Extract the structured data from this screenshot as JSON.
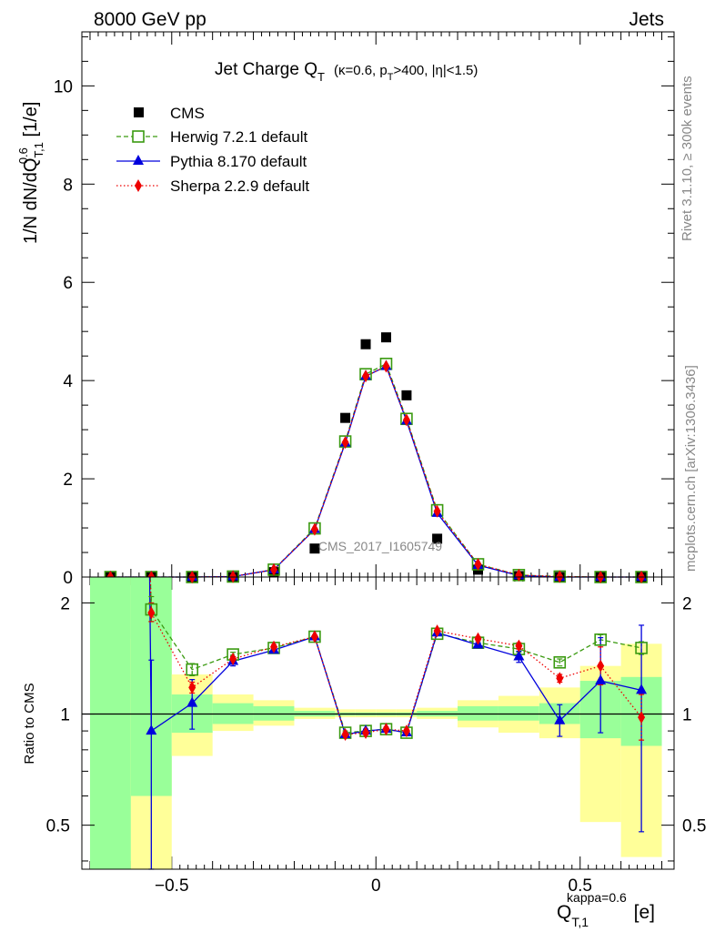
{
  "header": {
    "left": "8000 GeV pp",
    "right": "Jets"
  },
  "side_labels": {
    "rivet": "Rivet 3.1.10, ≥ 300k events",
    "mcplots": "mcplots.cern.ch [arXiv:1306.3436]"
  },
  "watermark": "CMS_2017_I1605749",
  "main_plot": {
    "title_main": "Jet Charge Q",
    "title_sub": "T",
    "title_cuts_a": "(κ=0.6, p",
    "title_cuts_b": "T",
    "title_cuts_c": ">400, |η|<1.5)",
    "ylabel_a": "1/N dN/dQ",
    "ylabel_sub": "T,1",
    "ylabel_sup": "0.6",
    "ylabel_b": " [1/e]",
    "y_ticks": [
      "0",
      "2",
      "4",
      "6",
      "8",
      "10"
    ]
  },
  "ratio_plot": {
    "ylabel": "Ratio to CMS",
    "y_ticks_left": [
      "0.5",
      "1",
      "2"
    ],
    "y_ticks_right": [
      "0.5",
      "1",
      "2"
    ],
    "x_ticks": [
      "−0.5",
      "0",
      "0.5"
    ],
    "xlabel_a": "Q",
    "xlabel_sub": "T,1",
    "xlabel_sup": "kappa=0.6",
    "xlabel_b": " [e]"
  },
  "legend": [
    {
      "label": "CMS",
      "color": "#000000",
      "marker": "square-filled"
    },
    {
      "label": "Herwig 7.2.1 default",
      "color": "#3a9a10",
      "marker": "square-open"
    },
    {
      "label": "Pythia 8.170 default",
      "color": "#0000dd",
      "marker": "triangle"
    },
    {
      "label": "Sherpa 2.2.9 default",
      "color": "#ee0000",
      "marker": "diamond"
    }
  ],
  "chart_data": [
    {
      "type": "scatter",
      "title": "Jet Charge Q_T (κ=0.6, p_T>400, |η|<1.5)",
      "xlabel": "Q_T,1^kappa=0.6 [e]",
      "ylabel": "1/N dN/dQ_T,1^0.6 [1/e]",
      "xlim": [
        -0.72,
        0.73
      ],
      "ylim": [
        0,
        11.1
      ],
      "x": [
        -0.65,
        -0.55,
        -0.45,
        -0.35,
        -0.25,
        -0.15,
        -0.075,
        -0.025,
        0.025,
        0.075,
        0.15,
        0.25,
        0.35,
        0.45,
        0.55,
        0.65
      ],
      "series": [
        {
          "name": "CMS",
          "values": [
            0.0,
            0.0,
            0.0,
            0.0,
            0.1,
            0.58,
            3.24,
            4.74,
            4.88,
            3.7,
            0.78,
            0.15,
            0.02,
            0.0,
            0.0,
            0.0
          ]
        },
        {
          "name": "Herwig 7.2.1 default",
          "values": [
            0.0,
            0.0,
            0.0,
            0.01,
            0.15,
            0.99,
            2.76,
            4.13,
            4.34,
            3.22,
            1.36,
            0.26,
            0.04,
            0.01,
            0.0,
            0.0
          ]
        },
        {
          "name": "Pythia 8.170 default",
          "values": [
            0.0,
            0.0,
            0.0,
            0.01,
            0.15,
            0.97,
            2.73,
            4.09,
            4.29,
            3.18,
            1.3,
            0.24,
            0.03,
            0.0,
            0.0,
            0.0
          ]
        },
        {
          "name": "Sherpa 2.2.9 default",
          "values": [
            0.0,
            0.0,
            0.0,
            0.01,
            0.15,
            0.97,
            2.74,
            4.09,
            4.29,
            3.2,
            1.34,
            0.26,
            0.04,
            0.01,
            0.0,
            0.0
          ]
        }
      ]
    },
    {
      "type": "line",
      "ylabel": "Ratio to CMS",
      "xlim": [
        -0.72,
        0.73
      ],
      "ylim": [
        0.38,
        2.35
      ],
      "y_scale": "log",
      "reference_line": 1,
      "bands": {
        "x_edges": [
          -0.7,
          -0.6,
          -0.5,
          -0.4,
          -0.3,
          -0.2,
          -0.1,
          -0.05,
          0,
          0.05,
          0.1,
          0.2,
          0.3,
          0.4,
          0.5,
          0.6,
          0.7
        ],
        "stat_lo": [
          0.38,
          0.6,
          0.89,
          0.94,
          0.96,
          0.985,
          0.99,
          0.99,
          0.99,
          0.99,
          0.985,
          0.96,
          0.96,
          0.94,
          0.86,
          0.82
        ],
        "stat_hi": [
          2.35,
          2.35,
          1.13,
          1.07,
          1.05,
          1.02,
          1.01,
          1.01,
          1.01,
          1.01,
          1.02,
          1.05,
          1.05,
          1.07,
          1.23,
          1.26
        ],
        "total_lo": [
          0.38,
          0.38,
          0.77,
          0.9,
          0.93,
          0.97,
          0.98,
          0.98,
          0.98,
          0.98,
          0.97,
          0.92,
          0.89,
          0.86,
          0.51,
          0.41
        ],
        "total_hi": [
          2.35,
          1.6,
          1.28,
          1.13,
          1.09,
          1.04,
          1.03,
          1.03,
          1.03,
          1.03,
          1.04,
          1.09,
          1.12,
          1.18,
          1.35,
          1.55
        ]
      },
      "x": [
        -0.65,
        -0.55,
        -0.45,
        -0.35,
        -0.25,
        -0.15,
        -0.075,
        -0.025,
        0.025,
        0.075,
        0.15,
        0.25,
        0.35,
        0.45,
        0.55,
        0.65
      ],
      "series": [
        {
          "name": "Herwig 7.2.1 default",
          "values": [
            null,
            1.92,
            1.32,
            1.45,
            1.51,
            1.62,
            0.89,
            0.9,
            0.91,
            0.89,
            1.65,
            1.56,
            1.5,
            1.38,
            1.59,
            1.51
          ],
          "err_lo": [
            null,
            0.14,
            0.05,
            0.02,
            0.02,
            0.01,
            0.01,
            0.01,
            0.01,
            0.01,
            0.01,
            0.02,
            0.03,
            0.03,
            0.05,
            0.06
          ],
          "err_hi": [
            null,
            0.16,
            0.05,
            0.02,
            0.02,
            0.01,
            0.01,
            0.01,
            0.01,
            0.01,
            0.01,
            0.02,
            0.03,
            0.03,
            0.05,
            0.06
          ]
        },
        {
          "name": "Pythia 8.170 default",
          "values": [
            null,
            0.9,
            1.07,
            1.39,
            1.49,
            1.62,
            0.88,
            0.9,
            0.91,
            0.89,
            1.66,
            1.54,
            1.43,
            0.96,
            1.23,
            1.16
          ],
          "err_lo": [
            null,
            0.55,
            0.16,
            0.04,
            0.02,
            0.01,
            0.01,
            0.01,
            0.01,
            0.01,
            0.01,
            0.02,
            0.05,
            0.09,
            0.34,
            0.68
          ],
          "err_hi": [
            null,
            0.5,
            0.17,
            0.04,
            0.02,
            0.01,
            0.01,
            0.01,
            0.01,
            0.01,
            0.01,
            0.02,
            0.05,
            0.1,
            0.38,
            0.58
          ]
        },
        {
          "name": "Sherpa 2.2.9 default",
          "values": [
            null,
            1.88,
            1.18,
            1.41,
            1.52,
            1.62,
            0.88,
            0.89,
            0.91,
            0.9,
            1.68,
            1.6,
            1.53,
            1.25,
            1.35,
            0.98
          ],
          "err_lo": [
            null,
            0.1,
            0.04,
            0.02,
            0.02,
            0.01,
            0.01,
            0.01,
            0.01,
            0.01,
            0.01,
            0.02,
            0.03,
            0.03,
            0.15,
            0.13
          ],
          "err_hi": [
            null,
            0.12,
            0.04,
            0.02,
            0.02,
            0.01,
            0.01,
            0.01,
            0.01,
            0.01,
            0.01,
            0.02,
            0.03,
            0.03,
            0.17,
            0.15
          ]
        }
      ]
    }
  ]
}
